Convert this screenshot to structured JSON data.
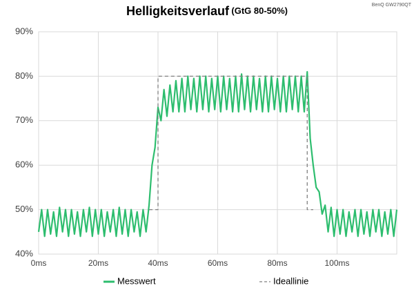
{
  "chart_data": {
    "type": "line",
    "title": "Helligkeitsverlauf",
    "subtitle": "(GtG 80-50%)",
    "annotation": "BenQ GW2790QT",
    "xlim": [
      0,
      120
    ],
    "xticks": [
      {
        "value": 0,
        "label": "0ms"
      },
      {
        "value": 20,
        "label": "20ms"
      },
      {
        "value": 40,
        "label": "40ms"
      },
      {
        "value": 60,
        "label": "60ms"
      },
      {
        "value": 80,
        "label": "80ms"
      },
      {
        "value": 100,
        "label": "100ms"
      }
    ],
    "ylim": [
      40,
      90
    ],
    "yticks": [
      {
        "value": 40,
        "label": "40%"
      },
      {
        "value": 50,
        "label": "50%"
      },
      {
        "value": 60,
        "label": "60%"
      },
      {
        "value": 70,
        "label": "70%"
      },
      {
        "value": 80,
        "label": "80%"
      },
      {
        "value": 90,
        "label": "90%"
      }
    ],
    "grid": true,
    "legend": "bottom",
    "series": [
      {
        "name": "Messwert",
        "color": "#2dbd6e",
        "dash": false,
        "x": [
          0,
          1,
          2,
          3,
          4,
          5,
          6,
          7,
          8,
          9,
          10,
          11,
          12,
          13,
          14,
          15,
          16,
          17,
          18,
          19,
          20,
          21,
          22,
          23,
          24,
          25,
          26,
          27,
          28,
          29,
          30,
          31,
          32,
          33,
          34,
          35,
          36,
          37,
          38,
          39,
          40,
          41,
          42,
          43,
          44,
          45,
          46,
          47,
          48,
          49,
          50,
          51,
          52,
          53,
          54,
          55,
          56,
          57,
          58,
          59,
          60,
          61,
          62,
          63,
          64,
          65,
          66,
          67,
          68,
          69,
          70,
          71,
          72,
          73,
          74,
          75,
          76,
          77,
          78,
          79,
          80,
          81,
          82,
          83,
          84,
          85,
          86,
          87,
          88,
          89,
          90,
          91,
          92,
          93,
          94,
          95,
          96,
          97,
          98,
          99,
          100,
          101,
          102,
          103,
          104,
          105,
          106,
          107,
          108,
          109,
          110,
          111,
          112,
          113,
          114,
          115,
          116,
          117,
          118,
          119,
          120
        ],
        "values": [
          45,
          50,
          44,
          50,
          44.5,
          49.5,
          44,
          50.5,
          45,
          50,
          44,
          50,
          44.5,
          49.5,
          44,
          50,
          45,
          50.5,
          44,
          50,
          44.5,
          50,
          44,
          49.5,
          45,
          50,
          44,
          50.5,
          44.5,
          50,
          44,
          50,
          45,
          49.5,
          44,
          50,
          45,
          51,
          60,
          64,
          73,
          70,
          77,
          71,
          78,
          72,
          79,
          72,
          79.5,
          72,
          80,
          72.5,
          79.5,
          72,
          80,
          72.5,
          80,
          72,
          79.5,
          72.5,
          80,
          72,
          80,
          72.5,
          79.5,
          72,
          80,
          72,
          80.5,
          72.5,
          80,
          72,
          80,
          72.5,
          79.5,
          72,
          80,
          72,
          80,
          72.5,
          79.5,
          72,
          80,
          72,
          80,
          72.5,
          80,
          72,
          80,
          72,
          81,
          66,
          60,
          55,
          54,
          49,
          51,
          45,
          50.5,
          44,
          50,
          44.5,
          50,
          44,
          49.5,
          45,
          50,
          44,
          50,
          44.5,
          49.5,
          44,
          50,
          45,
          50,
          44,
          49.5,
          44.5,
          50,
          44,
          50
        ]
      },
      {
        "name": "Ideallinie",
        "color": "#7f7f7f",
        "dash": true,
        "x": [
          37,
          40,
          40,
          90,
          90,
          92
        ],
        "values": [
          50,
          50,
          80,
          80,
          50,
          50
        ]
      }
    ]
  }
}
